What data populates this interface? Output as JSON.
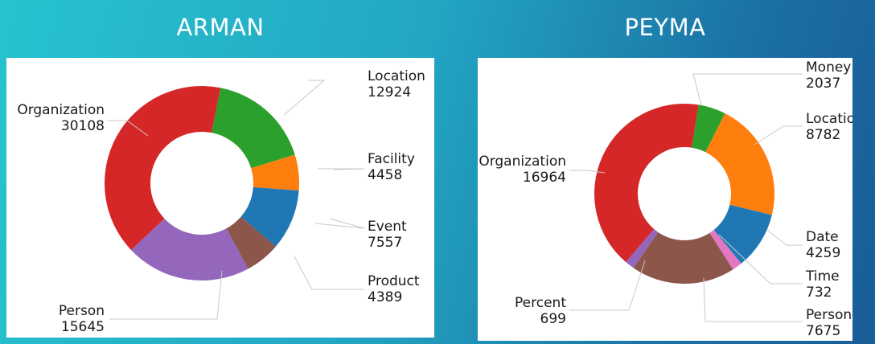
{
  "slide": {
    "left_title": "ARMAN",
    "right_title": "PEYMA"
  },
  "chart_data": [
    {
      "type": "pie",
      "title": "ARMAN",
      "donut": true,
      "categories": [
        "Location",
        "Facility",
        "Event",
        "Product",
        "Person",
        "Organization"
      ],
      "values": [
        12924,
        4458,
        7557,
        4389,
        15645,
        30108
      ],
      "colors": [
        "#2ca02c",
        "#ff7f0e",
        "#1f77b4",
        "#8c564b",
        "#9467bd",
        "#d62728"
      ]
    },
    {
      "type": "pie",
      "title": "PEYMA",
      "donut": true,
      "categories": [
        "Money",
        "Location",
        "Date",
        "Time",
        "Person",
        "Percent",
        "Organization"
      ],
      "values": [
        2037,
        8782,
        4259,
        732,
        7675,
        699,
        16964
      ],
      "colors": [
        "#2ca02c",
        "#ff7f0e",
        "#1f77b4",
        "#e377c2",
        "#8c564b",
        "#9467bd",
        "#d62728"
      ]
    }
  ]
}
